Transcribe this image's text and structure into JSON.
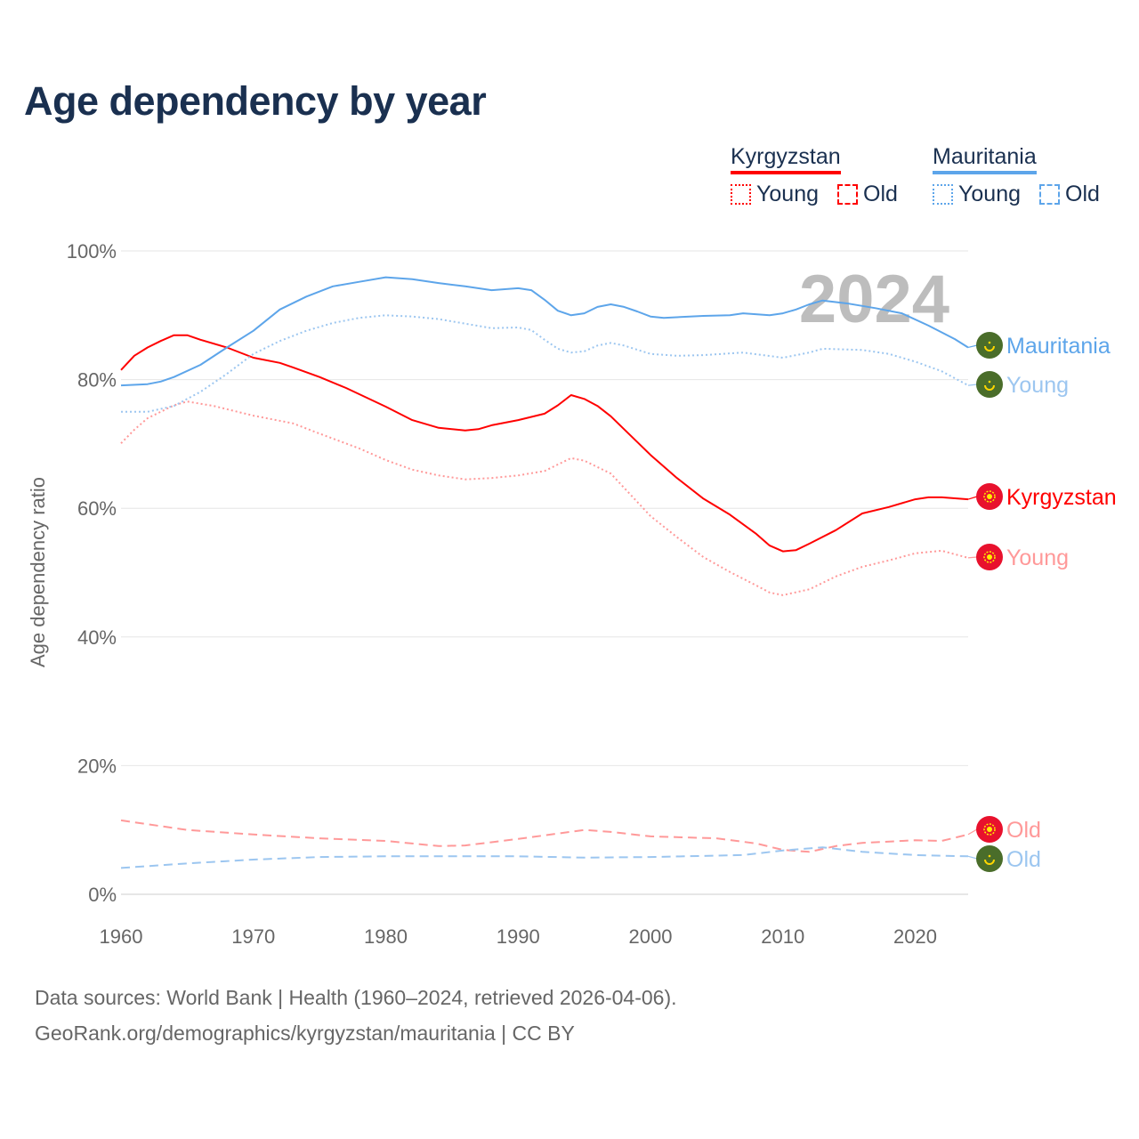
{
  "chart_data": {
    "type": "line",
    "title": "Age dependency by year",
    "ylabel": "Age dependency ratio",
    "xlabel": "",
    "xlim": [
      1960,
      2024
    ],
    "ylim": [
      0,
      100
    ],
    "x_ticks": [
      "1960",
      "1970",
      "1980",
      "1990",
      "2000",
      "2010",
      "2020"
    ],
    "y_ticks": [
      "0%",
      "20%",
      "40%",
      "60%",
      "80%",
      "100%"
    ],
    "year_watermark": "2024",
    "grid": true,
    "legend": {
      "placement": "top-right",
      "groups": [
        {
          "country": "Kyrgyzstan",
          "color": "#ff0000",
          "young": "Young",
          "old": "Old"
        },
        {
          "country": "Mauritania",
          "color": "#5da5ea",
          "young": "Young",
          "old": "Old"
        }
      ]
    },
    "series": [
      {
        "name": "Kyrgyzstan",
        "end_label": "Kyrgyzstan",
        "style": "solid",
        "color": "#ff0000",
        "flag": "kyrgyzstan",
        "points": [
          [
            1960,
            81.5
          ],
          [
            1961,
            83.7
          ],
          [
            1962,
            85
          ],
          [
            1963,
            86
          ],
          [
            1964,
            86.9
          ],
          [
            1965,
            86.9
          ],
          [
            1966,
            86.2
          ],
          [
            1968,
            85
          ],
          [
            1970,
            83.4
          ],
          [
            1972,
            82.6
          ],
          [
            1973,
            81.9
          ],
          [
            1975,
            80.4
          ],
          [
            1977,
            78.7
          ],
          [
            1980,
            75.8
          ],
          [
            1982,
            73.7
          ],
          [
            1984,
            72.5
          ],
          [
            1986,
            72.1
          ],
          [
            1987,
            72.3
          ],
          [
            1988,
            72.9
          ],
          [
            1990,
            73.7
          ],
          [
            1992,
            74.7
          ],
          [
            1993,
            76
          ],
          [
            1994,
            77.6
          ],
          [
            1995,
            77
          ],
          [
            1996,
            75.9
          ],
          [
            1997,
            74.3
          ],
          [
            1998,
            72.3
          ],
          [
            1999,
            70.3
          ],
          [
            2000,
            68.3
          ],
          [
            2002,
            64.7
          ],
          [
            2004,
            61.5
          ],
          [
            2006,
            59
          ],
          [
            2008,
            56
          ],
          [
            2009,
            54.2
          ],
          [
            2010,
            53.3
          ],
          [
            2011,
            53.5
          ],
          [
            2012,
            54.5
          ],
          [
            2014,
            56.6
          ],
          [
            2016,
            59.2
          ],
          [
            2018,
            60.2
          ],
          [
            2020,
            61.4
          ],
          [
            2021,
            61.7
          ],
          [
            2022,
            61.7
          ],
          [
            2024,
            61.4
          ]
        ]
      },
      {
        "name": "Kyrgyzstan Young",
        "end_label": "Young",
        "style": "dotted",
        "color": "#ff9999",
        "flag": "kyrgyzstan",
        "points": [
          [
            1960,
            70.1
          ],
          [
            1961,
            72.2
          ],
          [
            1962,
            74
          ],
          [
            1964,
            76
          ],
          [
            1965,
            76.6
          ],
          [
            1967,
            75.9
          ],
          [
            1970,
            74.4
          ],
          [
            1973,
            73.2
          ],
          [
            1975,
            71.6
          ],
          [
            1978,
            69.3
          ],
          [
            1980,
            67.5
          ],
          [
            1982,
            66
          ],
          [
            1984,
            65.1
          ],
          [
            1986,
            64.5
          ],
          [
            1988,
            64.7
          ],
          [
            1990,
            65.1
          ],
          [
            1992,
            65.8
          ],
          [
            1993,
            66.8
          ],
          [
            1994,
            67.8
          ],
          [
            1995,
            67.4
          ],
          [
            1997,
            65.4
          ],
          [
            2000,
            58.8
          ],
          [
            2002,
            55.5
          ],
          [
            2004,
            52.4
          ],
          [
            2006,
            50.1
          ],
          [
            2008,
            48
          ],
          [
            2009,
            46.9
          ],
          [
            2010,
            46.5
          ],
          [
            2012,
            47.4
          ],
          [
            2014,
            49.4
          ],
          [
            2016,
            50.9
          ],
          [
            2018,
            51.9
          ],
          [
            2020,
            53
          ],
          [
            2022,
            53.4
          ],
          [
            2024,
            52.3
          ]
        ]
      },
      {
        "name": "Kyrgyzstan Old",
        "end_label": "Old",
        "style": "dashed",
        "color": "#ff9999",
        "flag": "kyrgyzstan",
        "points": [
          [
            1960,
            11.5
          ],
          [
            1965,
            10
          ],
          [
            1970,
            9.3
          ],
          [
            1975,
            8.7
          ],
          [
            1980,
            8.3
          ],
          [
            1984,
            7.5
          ],
          [
            1986,
            7.6
          ],
          [
            1990,
            8.6
          ],
          [
            1995,
            10
          ],
          [
            1997,
            9.7
          ],
          [
            2000,
            9
          ],
          [
            2005,
            8.7
          ],
          [
            2008,
            7.9
          ],
          [
            2010,
            6.9
          ],
          [
            2012,
            6.6
          ],
          [
            2014,
            7.5
          ],
          [
            2016,
            8
          ],
          [
            2020,
            8.4
          ],
          [
            2022,
            8.3
          ],
          [
            2024,
            9.3
          ]
        ]
      },
      {
        "name": "Mauritania",
        "end_label": "Mauritania",
        "style": "solid",
        "color": "#5da5ea",
        "flag": "mauritania",
        "points": [
          [
            1960,
            79.1
          ],
          [
            1962,
            79.3
          ],
          [
            1963,
            79.7
          ],
          [
            1964,
            80.4
          ],
          [
            1966,
            82.3
          ],
          [
            1968,
            85
          ],
          [
            1970,
            87.6
          ],
          [
            1972,
            90.9
          ],
          [
            1974,
            92.9
          ],
          [
            1976,
            94.5
          ],
          [
            1978,
            95.2
          ],
          [
            1980,
            95.9
          ],
          [
            1982,
            95.6
          ],
          [
            1984,
            95
          ],
          [
            1986,
            94.5
          ],
          [
            1988,
            93.9
          ],
          [
            1990,
            94.2
          ],
          [
            1991,
            93.9
          ],
          [
            1992,
            92.4
          ],
          [
            1993,
            90.7
          ],
          [
            1994,
            90
          ],
          [
            1995,
            90.3
          ],
          [
            1996,
            91.3
          ],
          [
            1997,
            91.7
          ],
          [
            1998,
            91.3
          ],
          [
            1999,
            90.6
          ],
          [
            2000,
            89.8
          ],
          [
            2001,
            89.6
          ],
          [
            2004,
            89.9
          ],
          [
            2006,
            90
          ],
          [
            2007,
            90.3
          ],
          [
            2009,
            90
          ],
          [
            2010,
            90.3
          ],
          [
            2011,
            90.9
          ],
          [
            2012,
            91.7
          ],
          [
            2013,
            92.3
          ],
          [
            2015,
            91.8
          ],
          [
            2017,
            91.1
          ],
          [
            2019,
            90.3
          ],
          [
            2021,
            88.4
          ],
          [
            2023,
            86.3
          ],
          [
            2024,
            85
          ]
        ]
      },
      {
        "name": "Mauritania Young",
        "end_label": "Young",
        "style": "dotted",
        "color": "#9cc6f0",
        "flag": "mauritania",
        "points": [
          [
            1960,
            75
          ],
          [
            1962,
            75
          ],
          [
            1964,
            75.9
          ],
          [
            1966,
            78.1
          ],
          [
            1968,
            80.9
          ],
          [
            1970,
            84
          ],
          [
            1972,
            86
          ],
          [
            1974,
            87.6
          ],
          [
            1976,
            88.8
          ],
          [
            1978,
            89.6
          ],
          [
            1980,
            90
          ],
          [
            1982,
            89.8
          ],
          [
            1984,
            89.4
          ],
          [
            1986,
            88.7
          ],
          [
            1988,
            88
          ],
          [
            1990,
            88.1
          ],
          [
            1991,
            87.7
          ],
          [
            1992,
            86.2
          ],
          [
            1993,
            84.8
          ],
          [
            1994,
            84.2
          ],
          [
            1995,
            84.4
          ],
          [
            1996,
            85.3
          ],
          [
            1997,
            85.7
          ],
          [
            1998,
            85.3
          ],
          [
            2000,
            84
          ],
          [
            2002,
            83.7
          ],
          [
            2004,
            83.8
          ],
          [
            2007,
            84.2
          ],
          [
            2010,
            83.4
          ],
          [
            2012,
            84.2
          ],
          [
            2013,
            84.8
          ],
          [
            2016,
            84.6
          ],
          [
            2018,
            84
          ],
          [
            2020,
            82.8
          ],
          [
            2022,
            81.3
          ],
          [
            2024,
            79.1
          ]
        ]
      },
      {
        "name": "Mauritania Old",
        "end_label": "Old",
        "style": "dashed",
        "color": "#9cc6f0",
        "flag": "mauritania",
        "points": [
          [
            1960,
            4.1
          ],
          [
            1965,
            4.8
          ],
          [
            1970,
            5.4
          ],
          [
            1975,
            5.8
          ],
          [
            1980,
            5.9
          ],
          [
            1990,
            5.9
          ],
          [
            1995,
            5.7
          ],
          [
            2000,
            5.8
          ],
          [
            2007,
            6.1
          ],
          [
            2010,
            6.8
          ],
          [
            2013,
            7.3
          ],
          [
            2016,
            6.6
          ],
          [
            2020,
            6.1
          ],
          [
            2024,
            5.9
          ]
        ]
      }
    ]
  },
  "source": {
    "line1": "Data sources: World Bank | Health (1960–2024, retrieved 2026-04-06).",
    "line2": "GeoRank.org/demographics/kyrgyzstan/mauritania | CC BY"
  }
}
